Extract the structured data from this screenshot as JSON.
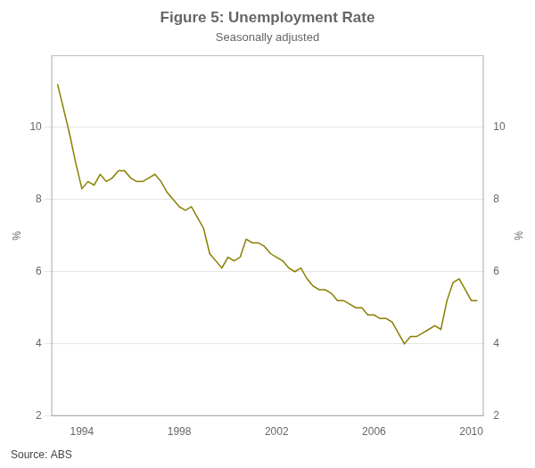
{
  "chart_data": {
    "type": "line",
    "title": "Figure 5: Unemployment Rate",
    "subtitle": "Seasonally adjusted",
    "source": "Source: ABS",
    "ylabel": "%",
    "y2label": "%",
    "xlim": [
      1992.75,
      2010.5
    ],
    "xticks": [
      1994,
      1998,
      2002,
      2006,
      2010
    ],
    "ylim": [
      2,
      12
    ],
    "yticks": [
      2,
      4,
      6,
      8,
      10
    ],
    "y2lim": [
      2,
      12
    ],
    "y2ticks": [
      2,
      4,
      6,
      8,
      10
    ],
    "grid": true,
    "x": [
      1993.0,
      1993.25,
      1993.5,
      1993.75,
      1994.0,
      1994.25,
      1994.5,
      1994.75,
      1995.0,
      1995.25,
      1995.5,
      1995.75,
      1996.0,
      1996.25,
      1996.5,
      1996.75,
      1997.0,
      1997.25,
      1997.5,
      1997.75,
      1998.0,
      1998.25,
      1998.5,
      1998.75,
      1999.0,
      1999.25,
      1999.5,
      1999.75,
      2000.0,
      2000.25,
      2000.5,
      2000.75,
      2001.0,
      2001.25,
      2001.5,
      2001.75,
      2002.0,
      2002.25,
      2002.5,
      2002.75,
      2003.0,
      2003.25,
      2003.5,
      2003.75,
      2004.0,
      2004.25,
      2004.5,
      2004.75,
      2005.0,
      2005.25,
      2005.5,
      2005.75,
      2006.0,
      2006.25,
      2006.5,
      2006.75,
      2007.0,
      2007.25,
      2007.5,
      2007.75,
      2008.0,
      2008.25,
      2008.5,
      2008.75,
      2009.0,
      2009.25,
      2009.5,
      2009.75,
      2010.0,
      2010.25
    ],
    "series": [
      {
        "color": "#8B7D00",
        "values": [
          11.2,
          10.5,
          9.8,
          9.0,
          8.3,
          8.5,
          8.4,
          8.7,
          8.5,
          8.6,
          8.8,
          8.8,
          8.6,
          8.5,
          8.5,
          8.6,
          8.7,
          8.5,
          8.2,
          8.0,
          7.8,
          7.7,
          7.8,
          7.5,
          7.2,
          6.5,
          6.3,
          6.1,
          6.4,
          6.3,
          6.4,
          6.9,
          6.8,
          6.8,
          6.7,
          6.5,
          6.4,
          6.3,
          6.1,
          6.0,
          6.1,
          5.8,
          5.6,
          5.5,
          5.5,
          5.4,
          5.2,
          5.2,
          5.1,
          5.0,
          5.0,
          4.8,
          4.8,
          4.7,
          4.7,
          4.6,
          4.3,
          4.0,
          4.2,
          4.2,
          4.3,
          4.4,
          4.5,
          4.4,
          5.2,
          5.7,
          5.8,
          5.5,
          5.2,
          5.2
        ]
      }
    ]
  }
}
